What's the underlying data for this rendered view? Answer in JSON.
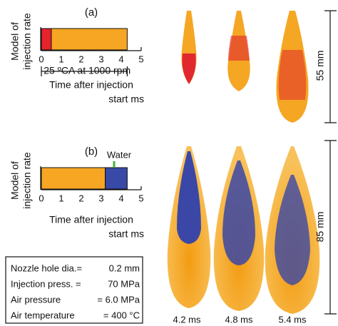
{
  "chart_data": [
    {
      "type": "hbar-stacked",
      "title": "(a)",
      "ylabel": [
        "Model of",
        "injection rate"
      ],
      "series": [
        {
          "color": "#e5232a",
          "values": [
            0.5
          ]
        },
        {
          "color": "#f6a623",
          "values": [
            3.8
          ]
        }
      ],
      "xlim": [
        0,
        5
      ],
      "xticks": [
        0,
        1,
        2,
        3,
        4,
        5
      ],
      "annotation": "25 ºCA at 1000 rpm",
      "xlabel": [
        "Time after injection",
        "start  ms"
      ]
    },
    {
      "type": "hbar-stacked",
      "title": "(b)",
      "ylabel": [
        "Model of",
        "injection rate"
      ],
      "series": [
        {
          "color": "#f6a623",
          "values": [
            3.2
          ]
        },
        {
          "name": "Water",
          "color": "#3949a8",
          "values": [
            1.1
          ]
        }
      ],
      "xlim": [
        0,
        5
      ],
      "xticks": [
        0,
        1,
        2,
        3,
        4,
        5
      ],
      "xlabel": [
        "Time after injection",
        "start  ms"
      ]
    }
  ],
  "conditions": [
    [
      "Nozzle hole dia.=",
      "0.2 mm"
    ],
    [
      "Injection press. =",
      "70  MPa"
    ],
    [
      "Air pressure",
      "= 6.0 MPa"
    ],
    [
      "Air temperature",
      "= 400 °C"
    ]
  ],
  "spray_times": [
    "4.2 ms",
    "4.8 ms",
    "5.4 ms"
  ],
  "lengths": [
    "55 mm",
    "85 mm"
  ]
}
